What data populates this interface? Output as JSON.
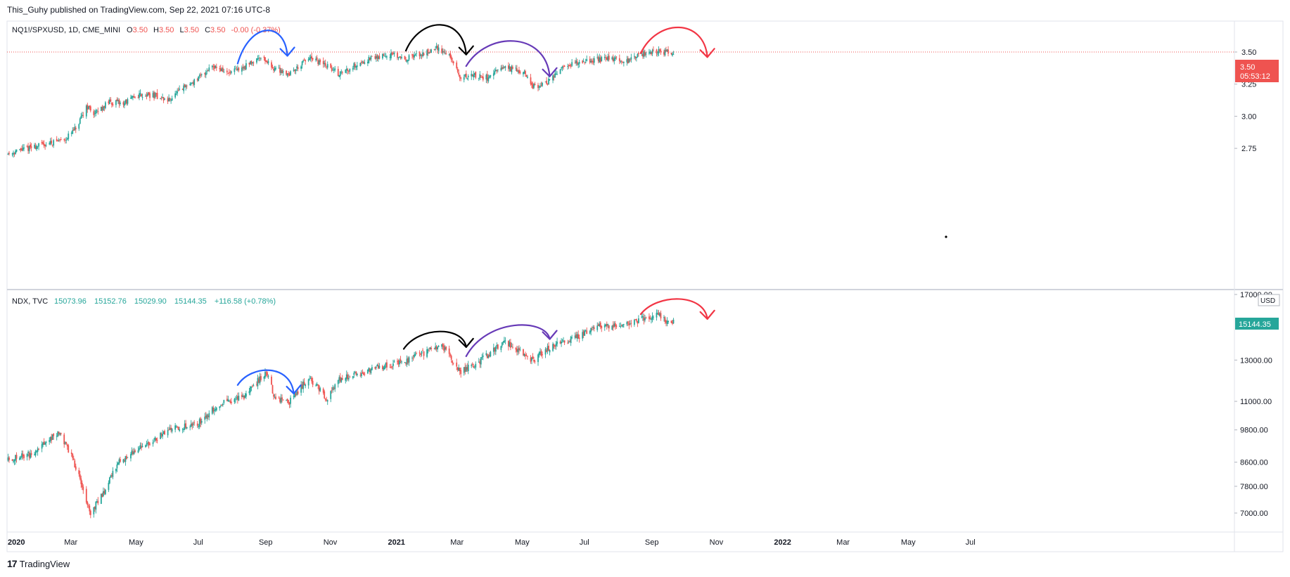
{
  "header": {
    "publisher": "This_Guhy published on TradingView.com, Sep 22, 2021 07:16 UTC-8"
  },
  "footer": {
    "brand_logo": "17",
    "brand": "TradingView"
  },
  "colors": {
    "up": "#26a69a",
    "down": "#ef5350",
    "grid": "#e0e3eb",
    "text": "#131722",
    "muted": "#787b86"
  },
  "chart_data": [
    {
      "type": "candlestick",
      "legend": {
        "symbol": "NQ1!/SPXUSD, 1D, CME_MINI",
        "o_label": "O",
        "o_value": "3.50",
        "h_label": "H",
        "h_value": "3.50",
        "l_label": "L",
        "l_value": "3.50",
        "c_label": "C",
        "c_value": "3.50",
        "change": "-0.00 (-0.37%)"
      },
      "y_ticks": [
        "3.50",
        "3.25",
        "3.00",
        "2.75"
      ],
      "ylim": [
        2.68,
        3.62
      ],
      "last_price": "3.50",
      "countdown": "05:53:12",
      "trend": [
        [
          "2020-01-02",
          2.71
        ],
        [
          "2020-01-20",
          2.75
        ],
        [
          "2020-02-10",
          2.79
        ],
        [
          "2020-02-26",
          2.83
        ],
        [
          "2020-03-08",
          2.92
        ],
        [
          "2020-03-16",
          3.08
        ],
        [
          "2020-03-24",
          3.02
        ],
        [
          "2020-04-06",
          3.11
        ],
        [
          "2020-04-20",
          3.1
        ],
        [
          "2020-05-05",
          3.17
        ],
        [
          "2020-05-20",
          3.16
        ],
        [
          "2020-06-01",
          3.12
        ],
        [
          "2020-06-16",
          3.22
        ],
        [
          "2020-07-01",
          3.3
        ],
        [
          "2020-07-13",
          3.4
        ],
        [
          "2020-07-28",
          3.33
        ],
        [
          "2020-08-12",
          3.38
        ],
        [
          "2020-08-28",
          3.47
        ],
        [
          "2020-09-08",
          3.38
        ],
        [
          "2020-09-24",
          3.33
        ],
        [
          "2020-10-12",
          3.45
        ],
        [
          "2020-10-28",
          3.4
        ],
        [
          "2020-11-10",
          3.33
        ],
        [
          "2020-11-25",
          3.4
        ],
        [
          "2020-12-10",
          3.45
        ],
        [
          "2020-12-28",
          3.48
        ],
        [
          "2021-01-12",
          3.45
        ],
        [
          "2021-01-26",
          3.48
        ],
        [
          "2021-02-10",
          3.53
        ],
        [
          "2021-02-22",
          3.48
        ],
        [
          "2021-03-04",
          3.3
        ],
        [
          "2021-03-16",
          3.32
        ],
        [
          "2021-03-30",
          3.3
        ],
        [
          "2021-04-15",
          3.38
        ],
        [
          "2021-05-03",
          3.35
        ],
        [
          "2021-05-12",
          3.23
        ],
        [
          "2021-05-25",
          3.26
        ],
        [
          "2021-06-10",
          3.38
        ],
        [
          "2021-06-25",
          3.43
        ],
        [
          "2021-07-12",
          3.44
        ],
        [
          "2021-07-28",
          3.45
        ],
        [
          "2021-08-10",
          3.43
        ],
        [
          "2021-08-25",
          3.49
        ],
        [
          "2021-09-03",
          3.5
        ],
        [
          "2021-09-22",
          3.5
        ]
      ],
      "annotations": [
        {
          "color": "#2962ff",
          "from": [
            "2020-08-06",
            3.41
          ],
          "to": [
            "2020-09-22",
            3.47
          ]
        },
        {
          "color": "#000000",
          "from": [
            "2021-01-12",
            3.51
          ],
          "to": [
            "2021-03-10",
            3.48
          ]
        },
        {
          "color": "#673ab7",
          "from": [
            "2021-03-10",
            3.39
          ],
          "to": [
            "2021-05-28",
            3.31
          ]
        },
        {
          "color": "#f23645",
          "from": [
            "2021-08-22",
            3.49
          ],
          "to": [
            "2021-10-24",
            3.46
          ]
        }
      ]
    },
    {
      "type": "candlestick",
      "legend": {
        "symbol": "NDX, TVC",
        "open": "15073.96",
        "high": "15152.76",
        "low": "15029.90",
        "close": "15144.35",
        "change": "+116.58 (+0.78%)"
      },
      "y_ticks": [
        {
          "label": "17000.00",
          "value": 17000
        },
        {
          "label": "13000.00",
          "value": 13000
        },
        {
          "label": "11000.00",
          "value": 11000
        },
        {
          "label": "9800.00",
          "value": 9800
        },
        {
          "label": "8600.00",
          "value": 8600
        },
        {
          "label": "7800.00",
          "value": 7800
        },
        {
          "label": "7000.00",
          "value": 7000
        }
      ],
      "scale": "log",
      "ylim": [
        6450,
        17000
      ],
      "currency": "USD",
      "last_price": "15144.35",
      "trend": [
        [
          "2020-01-02",
          8700
        ],
        [
          "2020-01-25",
          8900
        ],
        [
          "2020-02-19",
          9700
        ],
        [
          "2020-03-02",
          8800
        ],
        [
          "2020-03-12",
          7800
        ],
        [
          "2020-03-20",
          7000
        ],
        [
          "2020-04-01",
          7600
        ],
        [
          "2020-04-15",
          8600
        ],
        [
          "2020-05-10",
          9200
        ],
        [
          "2020-06-08",
          9900
        ],
        [
          "2020-06-28",
          10000
        ],
        [
          "2020-07-20",
          10900
        ],
        [
          "2020-08-12",
          11200
        ],
        [
          "2020-09-02",
          12400
        ],
        [
          "2020-09-10",
          11200
        ],
        [
          "2020-09-23",
          10900
        ],
        [
          "2020-10-12",
          12100
        ],
        [
          "2020-10-30",
          11100
        ],
        [
          "2020-11-10",
          12000
        ],
        [
          "2020-12-15",
          12600
        ],
        [
          "2021-01-10",
          12900
        ],
        [
          "2021-02-15",
          13800
        ],
        [
          "2021-03-04",
          12400
        ],
        [
          "2021-03-20",
          12800
        ],
        [
          "2021-04-15",
          14000
        ],
        [
          "2021-05-12",
          13000
        ],
        [
          "2021-05-28",
          13700
        ],
        [
          "2021-06-20",
          14200
        ],
        [
          "2021-07-15",
          14900
        ],
        [
          "2021-08-10",
          15100
        ],
        [
          "2021-09-07",
          15600
        ],
        [
          "2021-09-18",
          15100
        ],
        [
          "2021-09-22",
          15144
        ]
      ],
      "annotations": [
        {
          "color": "#2962ff",
          "from": [
            "2020-08-06",
            11750
          ],
          "to": [
            "2020-09-28",
            11350
          ]
        },
        {
          "color": "#000000",
          "from": [
            "2021-01-10",
            13600
          ],
          "to": [
            "2021-03-10",
            13700
          ]
        },
        {
          "color": "#673ab7",
          "from": [
            "2021-03-10",
            13200
          ],
          "to": [
            "2021-05-28",
            14150
          ]
        },
        {
          "color": "#f23645",
          "from": [
            "2021-08-22",
            15650
          ],
          "to": [
            "2021-10-24",
            15350
          ]
        }
      ]
    }
  ],
  "time_axis": {
    "labels": [
      {
        "label": "2020",
        "date": "2020-01-01",
        "bold": true
      },
      {
        "label": "Mar",
        "date": "2020-03-01"
      },
      {
        "label": "May",
        "date": "2020-05-01"
      },
      {
        "label": "Jul",
        "date": "2020-07-01"
      },
      {
        "label": "Sep",
        "date": "2020-09-01"
      },
      {
        "label": "Nov",
        "date": "2020-11-01"
      },
      {
        "label": "2021",
        "date": "2021-01-01",
        "bold": true
      },
      {
        "label": "Mar",
        "date": "2021-03-01"
      },
      {
        "label": "May",
        "date": "2021-05-01"
      },
      {
        "label": "Jul",
        "date": "2021-07-01"
      },
      {
        "label": "Sep",
        "date": "2021-09-01"
      },
      {
        "label": "Nov",
        "date": "2021-11-01"
      },
      {
        "label": "2022",
        "date": "2022-01-01",
        "bold": true
      },
      {
        "label": "Mar",
        "date": "2022-03-01"
      },
      {
        "label": "May",
        "date": "2022-05-01"
      },
      {
        "label": "Jul",
        "date": "2022-07-01"
      }
    ],
    "first_date": "2020-01-02",
    "last_bar_date": "2021-09-22"
  }
}
